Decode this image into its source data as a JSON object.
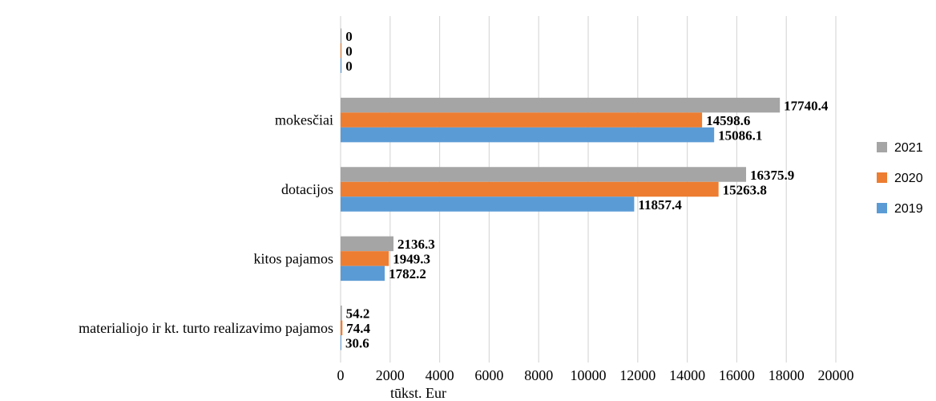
{
  "chart_data": {
    "type": "bar",
    "orientation": "horizontal",
    "title": "",
    "xlabel": "tūkst. Eur",
    "ylabel": "",
    "xlim": [
      0,
      20000
    ],
    "x_ticks": [
      "0",
      "2000",
      "4000",
      "6000",
      "8000",
      "10000",
      "12000",
      "14000",
      "16000",
      "18000",
      "20000"
    ],
    "grid": "vertical",
    "legend_position": "right",
    "categories": [
      "",
      "mokesčiai",
      "dotacijos",
      "kitos pajamos",
      "materialiojo ir kt. turto realizavimo pajamos"
    ],
    "series": [
      {
        "name": "2021",
        "color": "#a5a5a5",
        "values": [
          0,
          17740.4,
          16375.9,
          2136.3,
          54.2
        ],
        "labels": [
          "0",
          "17740.4",
          "16375.9",
          "2136.3",
          "54.2"
        ]
      },
      {
        "name": "2020",
        "color": "#ed7d31",
        "values": [
          0,
          14598.6,
          15263.8,
          1949.3,
          74.4
        ],
        "labels": [
          "0",
          "14598.6",
          "15263.8",
          "1949.3",
          "74.4"
        ]
      },
      {
        "name": "2019",
        "color": "#5b9bd5",
        "values": [
          0,
          15086.1,
          11857.4,
          1782.2,
          30.6
        ],
        "labels": [
          "0",
          "15086.1",
          "11857.4",
          "1782.2",
          "30.6"
        ]
      }
    ]
  }
}
